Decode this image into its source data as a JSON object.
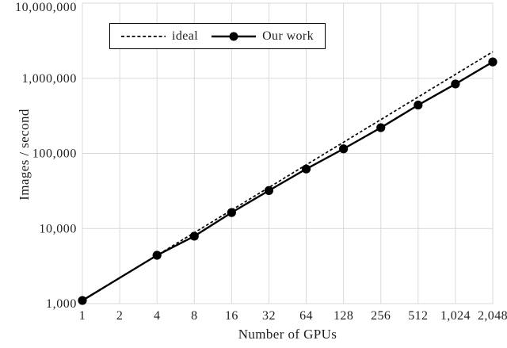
{
  "colors": {
    "series": "#000000",
    "grid": "#d9d9d9",
    "text": "#1f1f1f",
    "background": "#ffffff"
  },
  "chart_data": {
    "type": "line",
    "title": "",
    "xlabel": "Number of GPUs",
    "ylabel": "Images / second",
    "x_scale": "log2",
    "y_scale": "log10",
    "xlim": [
      1,
      2048
    ],
    "ylim": [
      1000,
      10000000
    ],
    "grid": true,
    "legend_position": "top-center",
    "x_ticks": [
      1,
      2,
      4,
      8,
      16,
      32,
      64,
      128,
      256,
      512,
      1024,
      2048
    ],
    "x_tick_labels": [
      "1",
      "2",
      "4",
      "8",
      "16",
      "32",
      "64",
      "128",
      "256",
      "512",
      "1,024",
      "2,048"
    ],
    "y_ticks": [
      1000,
      10000,
      100000,
      1000000,
      10000000
    ],
    "y_tick_labels": [
      "1,000",
      "10,000",
      "100,000",
      "1,000,000",
      "10,000,000"
    ],
    "x": [
      1,
      4,
      8,
      16,
      32,
      64,
      128,
      256,
      512,
      1024,
      2048
    ],
    "series": [
      {
        "name": "ideal",
        "style": "dashed",
        "marker": "none",
        "values": [
          1100,
          4400,
          8800,
          17600,
          35200,
          70400,
          140800,
          281600,
          563200,
          1126400,
          2252800
        ]
      },
      {
        "name": "Our work",
        "style": "solid",
        "marker": "circle",
        "values": [
          1100,
          4400,
          7900,
          16300,
          32000,
          62000,
          115000,
          220000,
          440000,
          840000,
          1650000
        ]
      }
    ]
  }
}
